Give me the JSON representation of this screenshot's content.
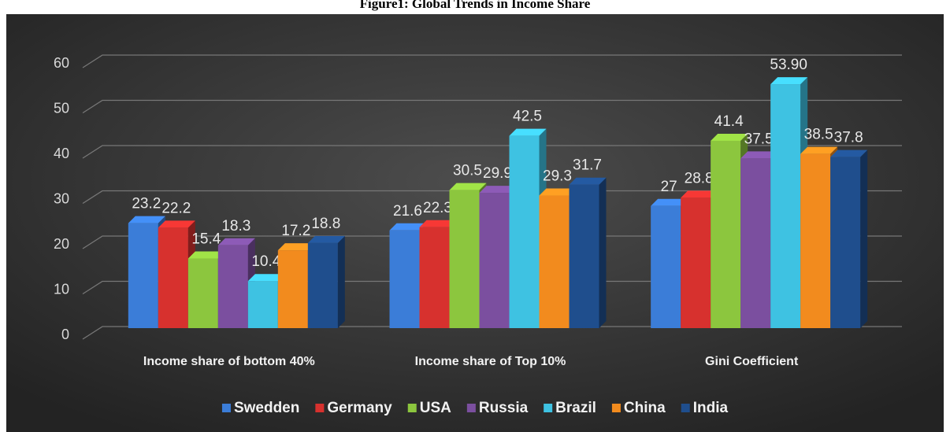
{
  "chart_data": {
    "type": "bar3d",
    "title": "Figure1: Global Trends in Income Share",
    "categories": [
      "Income share of bottom 40%",
      "Income share of Top 10%",
      "Gini Coefficient"
    ],
    "series": [
      {
        "name": "Swedden",
        "color": "#3b7dd8",
        "values": [
          23.2,
          21.6,
          27
        ]
      },
      {
        "name": "Germany",
        "color": "#d7312e",
        "values": [
          22.2,
          22.3,
          28.8
        ]
      },
      {
        "name": "USA",
        "color": "#8cc63e",
        "values": [
          15.4,
          30.5,
          41.4
        ]
      },
      {
        "name": "Russia",
        "color": "#7b4f9f",
        "values": [
          18.3,
          29.9,
          37.5
        ]
      },
      {
        "name": "Brazil",
        "color": "#3ec2e2",
        "values": [
          10.4,
          42.5,
          53.9
        ],
        "value_labels": [
          null,
          null,
          "53.90"
        ]
      },
      {
        "name": "China",
        "color": "#f28b1e",
        "values": [
          17.2,
          29.3,
          38.5
        ]
      },
      {
        "name": "India",
        "color": "#1f4e8d",
        "values": [
          18.8,
          31.7,
          37.8
        ]
      }
    ],
    "ylim": [
      0,
      60
    ],
    "yticks": [
      0,
      10,
      20,
      30,
      40,
      50,
      60
    ],
    "grid": true,
    "legend": "bottom"
  }
}
